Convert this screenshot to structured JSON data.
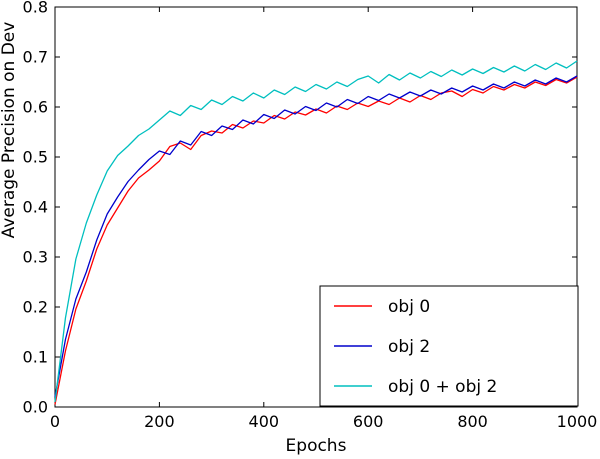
{
  "figure": {
    "background": "#ffffff",
    "axis_color": "#000000"
  },
  "chart_data": {
    "type": "line",
    "title": "",
    "xlabel": "Epochs",
    "ylabel": "Average Precision on Dev",
    "xlim": [
      0,
      1000
    ],
    "ylim": [
      0.0,
      0.8
    ],
    "xticks": [
      0,
      200,
      400,
      600,
      800,
      1000
    ],
    "yticks": [
      0.0,
      0.1,
      0.2,
      0.3,
      0.4,
      0.5,
      0.6,
      0.7,
      0.8
    ],
    "grid": false,
    "legend": {
      "position": "lower-right",
      "border": true,
      "background": "#ffffff"
    },
    "x": [
      0,
      20,
      40,
      60,
      80,
      100,
      120,
      140,
      160,
      180,
      200,
      220,
      240,
      260,
      280,
      300,
      320,
      340,
      360,
      380,
      400,
      420,
      440,
      460,
      480,
      500,
      520,
      540,
      560,
      580,
      600,
      620,
      640,
      660,
      680,
      700,
      720,
      740,
      760,
      780,
      800,
      820,
      840,
      860,
      880,
      900,
      920,
      940,
      960,
      980,
      1000
    ],
    "series": [
      {
        "name": "obj 0",
        "color": "#ff0000",
        "values": [
          0.005,
          0.112,
          0.196,
          0.252,
          0.316,
          0.364,
          0.398,
          0.432,
          0.458,
          0.474,
          0.492,
          0.521,
          0.528,
          0.515,
          0.543,
          0.552,
          0.548,
          0.565,
          0.558,
          0.572,
          0.568,
          0.583,
          0.576,
          0.59,
          0.584,
          0.596,
          0.588,
          0.602,
          0.595,
          0.608,
          0.601,
          0.612,
          0.605,
          0.618,
          0.61,
          0.623,
          0.615,
          0.628,
          0.632,
          0.621,
          0.635,
          0.628,
          0.641,
          0.634,
          0.645,
          0.638,
          0.65,
          0.643,
          0.655,
          0.648,
          0.66
        ]
      },
      {
        "name": "obj 2",
        "color": "#0000cc",
        "values": [
          0.02,
          0.135,
          0.216,
          0.27,
          0.334,
          0.386,
          0.42,
          0.451,
          0.474,
          0.495,
          0.512,
          0.505,
          0.532,
          0.524,
          0.551,
          0.543,
          0.562,
          0.555,
          0.574,
          0.566,
          0.585,
          0.577,
          0.594,
          0.586,
          0.601,
          0.593,
          0.608,
          0.6,
          0.615,
          0.607,
          0.621,
          0.613,
          0.626,
          0.618,
          0.63,
          0.622,
          0.634,
          0.626,
          0.638,
          0.63,
          0.642,
          0.634,
          0.646,
          0.638,
          0.65,
          0.642,
          0.654,
          0.646,
          0.658,
          0.65,
          0.662
        ]
      },
      {
        "name": "obj 0 + obj 2",
        "color": "#00bfbf",
        "values": [
          0.01,
          0.178,
          0.296,
          0.368,
          0.424,
          0.472,
          0.503,
          0.522,
          0.543,
          0.556,
          0.574,
          0.592,
          0.583,
          0.603,
          0.595,
          0.614,
          0.605,
          0.621,
          0.612,
          0.628,
          0.618,
          0.634,
          0.625,
          0.64,
          0.631,
          0.645,
          0.636,
          0.65,
          0.641,
          0.655,
          0.662,
          0.648,
          0.665,
          0.654,
          0.668,
          0.658,
          0.671,
          0.661,
          0.674,
          0.664,
          0.676,
          0.667,
          0.679,
          0.67,
          0.682,
          0.672,
          0.685,
          0.675,
          0.688,
          0.678,
          0.692
        ]
      }
    ]
  }
}
